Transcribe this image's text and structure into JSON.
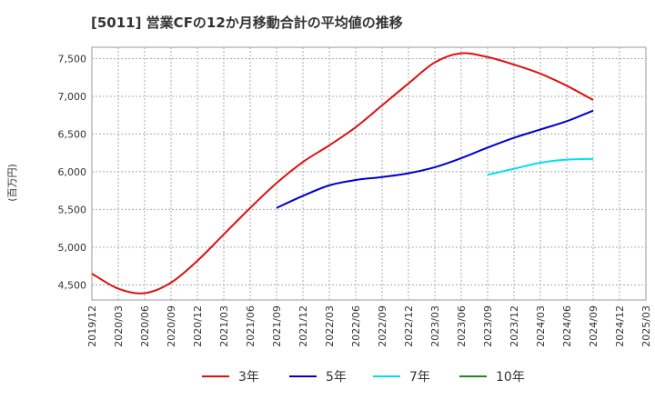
{
  "chart_data": {
    "type": "line",
    "title": "[5011]  営業CFの12か月移動合計の平均値の推移",
    "ylabel": "(百万円)",
    "xlabel": "",
    "ylim": [
      4300,
      7650
    ],
    "yticks": [
      4500,
      5000,
      5500,
      6000,
      6500,
      7000,
      7500
    ],
    "ytick_labels": [
      "4,500",
      "5,000",
      "5,500",
      "6,000",
      "6,500",
      "7,000",
      "7,500"
    ],
    "x": [
      "2019/12",
      "2020/03",
      "2020/06",
      "2020/09",
      "2020/12",
      "2021/03",
      "2021/06",
      "2021/09",
      "2021/12",
      "2022/03",
      "2022/06",
      "2022/09",
      "2022/12",
      "2023/03",
      "2023/06",
      "2023/09",
      "2023/12",
      "2024/03",
      "2024/06",
      "2024/09",
      "2024/12",
      "2025/03"
    ],
    "grid": true,
    "legend_position": "bottom",
    "series": [
      {
        "name": "3年",
        "color": "#dd1111",
        "values": [
          4650,
          4450,
          4390,
          4530,
          4820,
          5170,
          5520,
          5850,
          6130,
          6350,
          6590,
          6880,
          7170,
          7450,
          7570,
          7520,
          7420,
          7300,
          7140,
          6950,
          null,
          null
        ]
      },
      {
        "name": "5年",
        "color": "#0000cc",
        "values": [
          null,
          null,
          null,
          null,
          null,
          null,
          null,
          5520,
          5680,
          5820,
          5890,
          5930,
          5980,
          6060,
          6180,
          6320,
          6450,
          6560,
          6670,
          6810,
          null,
          null
        ]
      },
      {
        "name": "7年",
        "color": "#00e0f0",
        "values": [
          null,
          null,
          null,
          null,
          null,
          null,
          null,
          null,
          null,
          null,
          null,
          null,
          null,
          null,
          null,
          5960,
          6040,
          6120,
          6160,
          6170,
          null,
          null
        ]
      },
      {
        "name": "10年",
        "color": "#228822",
        "values": [
          null,
          null,
          null,
          null,
          null,
          null,
          null,
          null,
          null,
          null,
          null,
          null,
          null,
          null,
          null,
          null,
          null,
          null,
          null,
          null,
          null,
          null
        ]
      }
    ]
  }
}
